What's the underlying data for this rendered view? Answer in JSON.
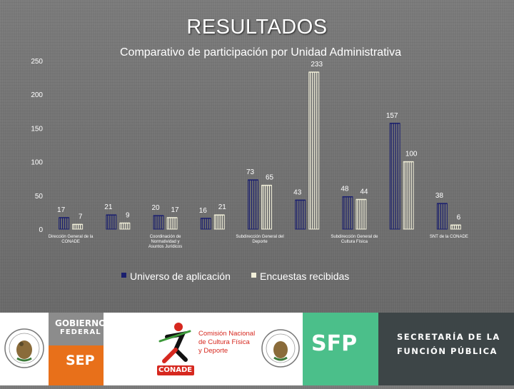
{
  "slide": {
    "title": "RESULTADOS"
  },
  "chart_data": {
    "type": "bar",
    "title": "Comparativo de participación por Unidad Administrativa",
    "xlabel": "",
    "ylabel": "",
    "ylim": [
      0,
      250
    ],
    "yticks": [
      0,
      50,
      100,
      150,
      200,
      250
    ],
    "grid": false,
    "legend_position": "bottom",
    "categories": [
      "Dirección General de la CONADE",
      "",
      "Coordinación de Normatividad y Asuntos Jurídicos",
      "",
      "Subdirección General del Deporte",
      "",
      "Subdirección General de Cultura Física",
      "",
      "SNT de la CONADE"
    ],
    "series": [
      {
        "name": "Universo de aplicación",
        "color": "#1a1f6e",
        "values": [
          17,
          21,
          20,
          16,
          73,
          43,
          48,
          157,
          38
        ]
      },
      {
        "name": "Encuestas recibidas",
        "color": "#f1efd9",
        "values": [
          7,
          9,
          17,
          21,
          65,
          233,
          44,
          100,
          6
        ]
      }
    ]
  },
  "footer": {
    "gobierno_line1": "GOBIERNO",
    "gobierno_line2": "FEDERAL",
    "sep": "SEP",
    "conade_label": "CONADE",
    "conade_line1": "Comisión Nacional",
    "conade_line2": "de Cultura Física",
    "conade_line3": "y Deporte",
    "sfp": "SFP",
    "sfp_line1": "SECRETARÍA DE LA",
    "sfp_line2": "FUNCIÓN PÚBLICA",
    "seal_text": "ESTADOS UNIDOS MEXICANOS",
    "colors": {
      "gobierno": "#8c8c8c",
      "sep": "#e8701a",
      "sfp_green": "#4bbf8a",
      "sfp_dark": "#3d4547",
      "conade_red": "#d6281f"
    }
  }
}
